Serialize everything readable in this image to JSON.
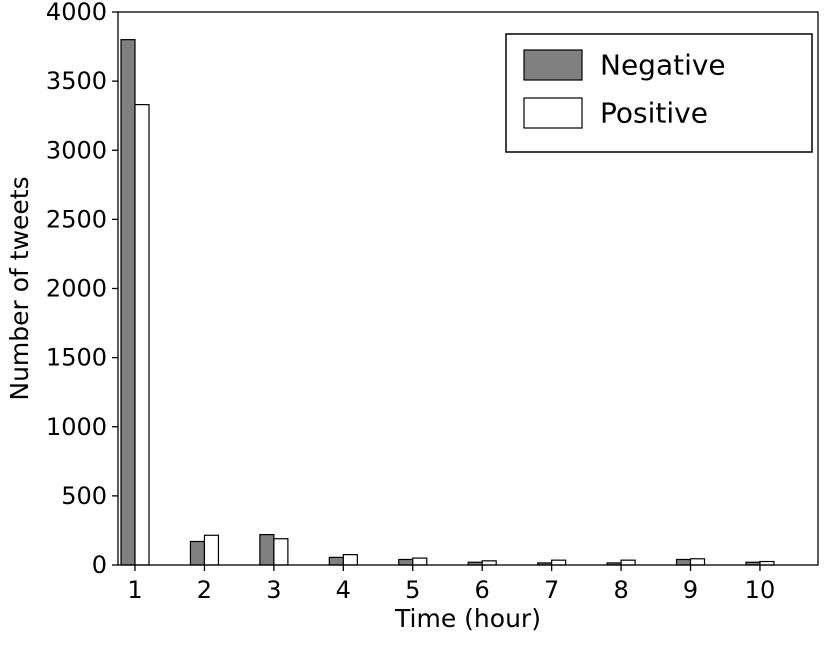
{
  "chart_data": {
    "type": "bar",
    "title": "",
    "xlabel": "Time (hour)",
    "ylabel": "Number of tweets",
    "categories": [
      "1",
      "2",
      "3",
      "4",
      "5",
      "6",
      "7",
      "8",
      "9",
      "10"
    ],
    "series": [
      {
        "name": "Negative",
        "color": "#808080",
        "values": [
          3800,
          170,
          220,
          55,
          40,
          20,
          15,
          15,
          40,
          20
        ]
      },
      {
        "name": "Positive",
        "color": "#ffffff",
        "values": [
          3330,
          215,
          190,
          75,
          50,
          30,
          35,
          35,
          45,
          25
        ]
      }
    ],
    "ylim": [
      0,
      4000
    ],
    "ytick_step": 500,
    "grid": false,
    "legend_position": "upper right",
    "axis_color": "#000000",
    "bar_edge_color": "#000000",
    "background_color": "#ffffff"
  }
}
